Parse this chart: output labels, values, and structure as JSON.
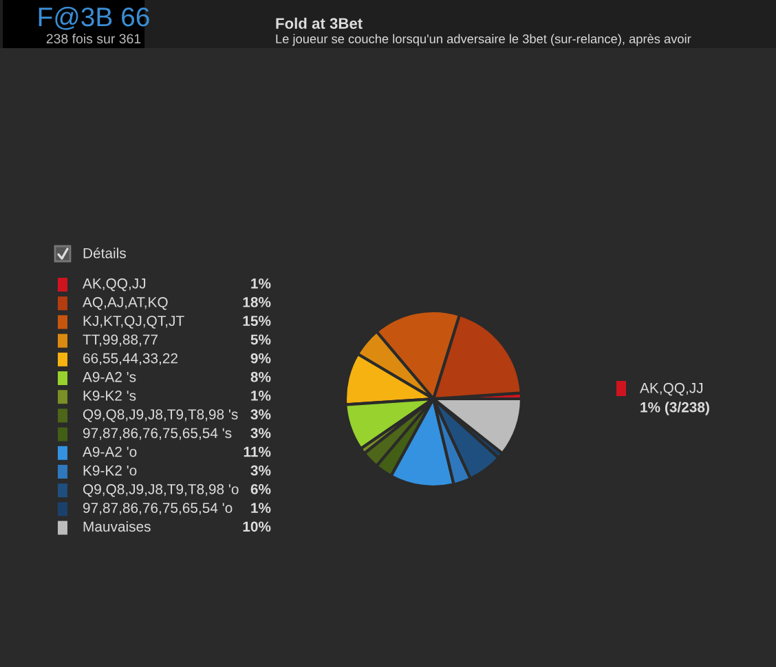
{
  "chart_data": {
    "type": "pie",
    "title": "Fold at 3Bet",
    "subtitle": "Le joueur se couche lorsqu'un adversaire le 3bet (sur-relance), après avoir",
    "annotations": [
      "F@3B 66",
      "238 fois sur 361",
      "Détails",
      "AK,QQ,JJ",
      "1% (3/238)"
    ],
    "categories": [
      "AK,QQ,JJ",
      "AQ,AJ,AT,KQ",
      "KJ,KT,QJ,QT,JT",
      "TT,99,88,77",
      "66,55,44,33,22",
      "A9-A2 's",
      "K9-K2 's",
      "Q9,Q8,J9,J8,T9,T8,98 's",
      "97,87,86,76,75,65,54 's",
      "A9-A2 'o",
      "K9-K2 'o",
      "Q9,Q8,J9,J8,T9,T8,98 'o",
      "97,87,86,76,75,65,54 'o",
      "Mauvaises"
    ],
    "values": [
      1,
      18,
      15,
      5,
      9,
      8,
      1,
      3,
      3,
      11,
      3,
      6,
      1,
      10
    ],
    "colors": [
      "#d0141f",
      "#b33c10",
      "#c6560f",
      "#dc8b10",
      "#f6b210",
      "#97d22e",
      "#7a8f25",
      "#4d6619",
      "#435e15",
      "#3592e0",
      "#2f78bd",
      "#1f4f7f",
      "#1a416c",
      "#bcbcbc"
    ],
    "value_labels": [
      "1%",
      "18%",
      "15%",
      "5%",
      "9%",
      "8%",
      "1%",
      "3%",
      "3%",
      "11%",
      "3%",
      "6%",
      "1%",
      "10%"
    ],
    "legend": "left"
  }
}
